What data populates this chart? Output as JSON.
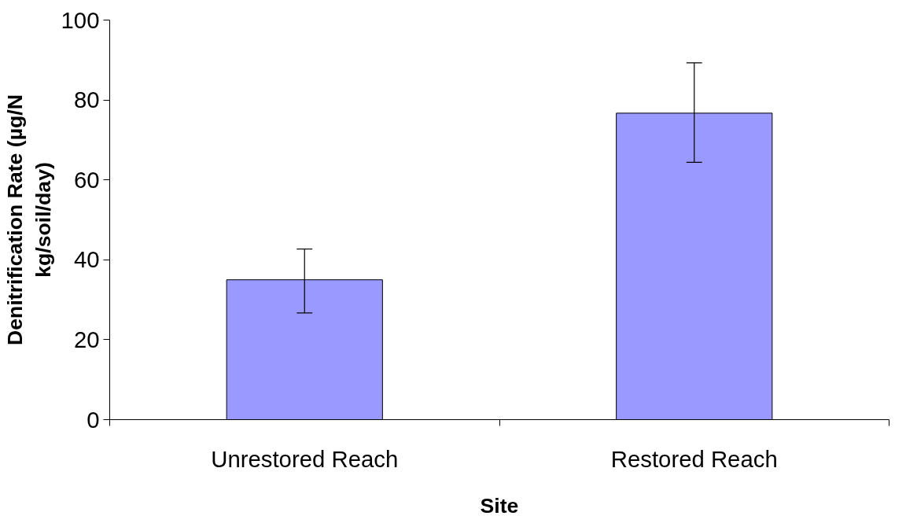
{
  "chart_data": {
    "type": "bar",
    "xlabel": "Site",
    "ylabel": "Denitrification Rate (µg/N\nkg/soil/day)",
    "categories": [
      "Unrestored Reach",
      "Restored Reach"
    ],
    "values": [
      35,
      76.7
    ],
    "errors": [
      [
        26.7,
        42.7
      ],
      [
        64.4,
        89.3
      ]
    ],
    "color": "#9999ff",
    "ylim": [
      0,
      100
    ],
    "yticks": [
      0,
      20,
      40,
      60,
      80,
      100
    ],
    "grid": false
  }
}
